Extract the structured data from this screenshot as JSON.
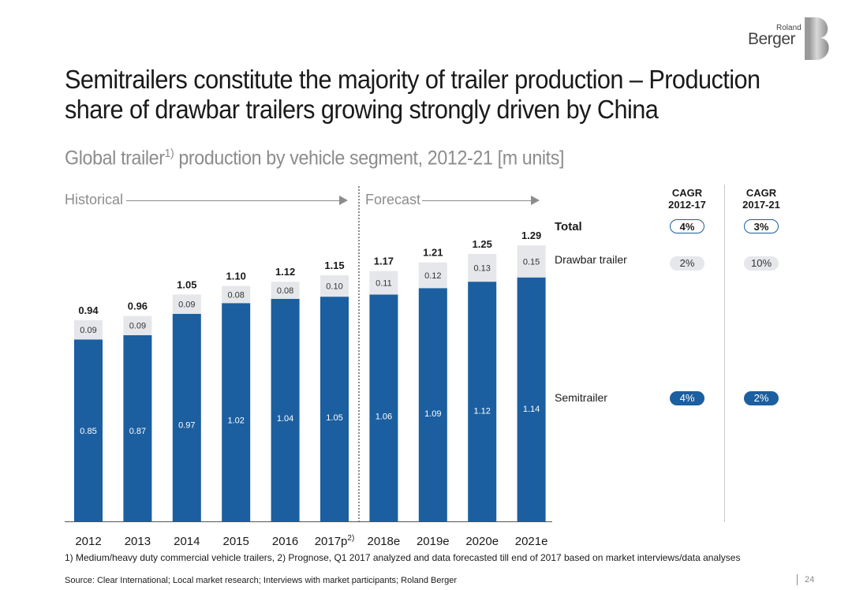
{
  "brand": {
    "line1": "Roland",
    "line2": "Berger"
  },
  "title": "Semitrailers constitute the majority of trailer production – Production share of drawbar trailers growing strongly driven by China",
  "subtitle": {
    "text": "Global trailer",
    "sup": "1)",
    "rest": " production by vehicle segment, 2012-21 [m units]"
  },
  "phases": {
    "historical": "Historical",
    "forecast": "Forecast"
  },
  "cagr": {
    "headers": [
      {
        "line1": "CAGR",
        "line2": "2012-17"
      },
      {
        "line1": "CAGR",
        "line2": "2017-21"
      }
    ],
    "rows": [
      {
        "label": "Total",
        "values": [
          "4%",
          "3%"
        ]
      },
      {
        "label": "Drawbar trailer",
        "values": [
          "2%",
          "10%"
        ]
      },
      {
        "label": "Semitrailer",
        "values": [
          "4%",
          "2%"
        ]
      }
    ]
  },
  "chart_data": {
    "type": "bar",
    "stacked": true,
    "categories": [
      "2012",
      "2013",
      "2014",
      "2015",
      "2016",
      "2017p",
      "2018e",
      "2019e",
      "2020e",
      "2021e"
    ],
    "category_superscripts": [
      "",
      "",
      "",
      "",
      "",
      "2)",
      "",
      "",
      "",
      ""
    ],
    "series": [
      {
        "name": "Semitrailer",
        "values": [
          0.85,
          0.87,
          0.97,
          1.02,
          1.04,
          1.05,
          1.06,
          1.09,
          1.12,
          1.14
        ],
        "labels": [
          "0.85",
          "0.87",
          "0.97",
          "1.02",
          "1.04",
          "1.05",
          "1.06",
          "1.09",
          "1.12",
          "1.14"
        ]
      },
      {
        "name": "Drawbar trailer",
        "values": [
          0.09,
          0.09,
          0.09,
          0.08,
          0.08,
          0.1,
          0.11,
          0.12,
          0.13,
          0.15
        ],
        "labels": [
          "0.09",
          "0.09",
          "0.09",
          "0.08",
          "0.08",
          "0.10",
          "0.11",
          "0.12",
          "0.13",
          "0.15"
        ]
      }
    ],
    "totals": [
      0.94,
      0.96,
      1.05,
      1.1,
      1.12,
      1.15,
      1.17,
      1.21,
      1.25,
      1.29
    ],
    "total_labels": [
      "0.94",
      "0.96",
      "1.05",
      "1.10",
      "1.12",
      "1.15",
      "1.17",
      "1.21",
      "1.25",
      "1.29"
    ],
    "ylim": [
      0,
      1.29
    ],
    "colors": {
      "Semitrailer": "#1b5fa0",
      "Drawbar trailer": "#e5e7ea"
    },
    "title": "Global trailer production by vehicle segment, 2012-21",
    "ylabel": "m units"
  },
  "footnote": "1) Medium/heavy duty commercial vehicle trailers, 2) Prognose, Q1 2017 analyzed and data forecasted till end of 2017 based on market interviews/data analyses",
  "source": "Source: Clear International; Local market research; Interviews with market participants; Roland Berger",
  "page_number": "24"
}
